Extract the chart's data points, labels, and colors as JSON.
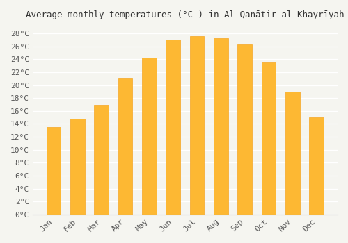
{
  "title": "Average monthly temperatures (°C ) in Al Qanāṭir al Khayrīyah",
  "months": [
    "Jan",
    "Feb",
    "Mar",
    "Apr",
    "May",
    "Jun",
    "Jul",
    "Aug",
    "Sep",
    "Oct",
    "Nov",
    "Dec"
  ],
  "values": [
    13.5,
    14.8,
    17.0,
    21.0,
    24.3,
    27.1,
    27.6,
    27.3,
    26.3,
    23.5,
    19.0,
    15.0
  ],
  "bar_color": "#FDB833",
  "bar_edge_color": "#F5A623",
  "background_color": "#f5f5f0",
  "grid_color": "#ffffff",
  "ytick_labels": [
    "0°C",
    "2°C",
    "4°C",
    "6°C",
    "8°C",
    "10°C",
    "12°C",
    "14°C",
    "16°C",
    "18°C",
    "20°C",
    "22°C",
    "24°C",
    "26°C",
    "28°C"
  ],
  "ytick_values": [
    0,
    2,
    4,
    6,
    8,
    10,
    12,
    14,
    16,
    18,
    20,
    22,
    24,
    26,
    28
  ],
  "ylim": [
    0,
    29
  ],
  "title_fontsize": 9,
  "tick_fontsize": 8
}
